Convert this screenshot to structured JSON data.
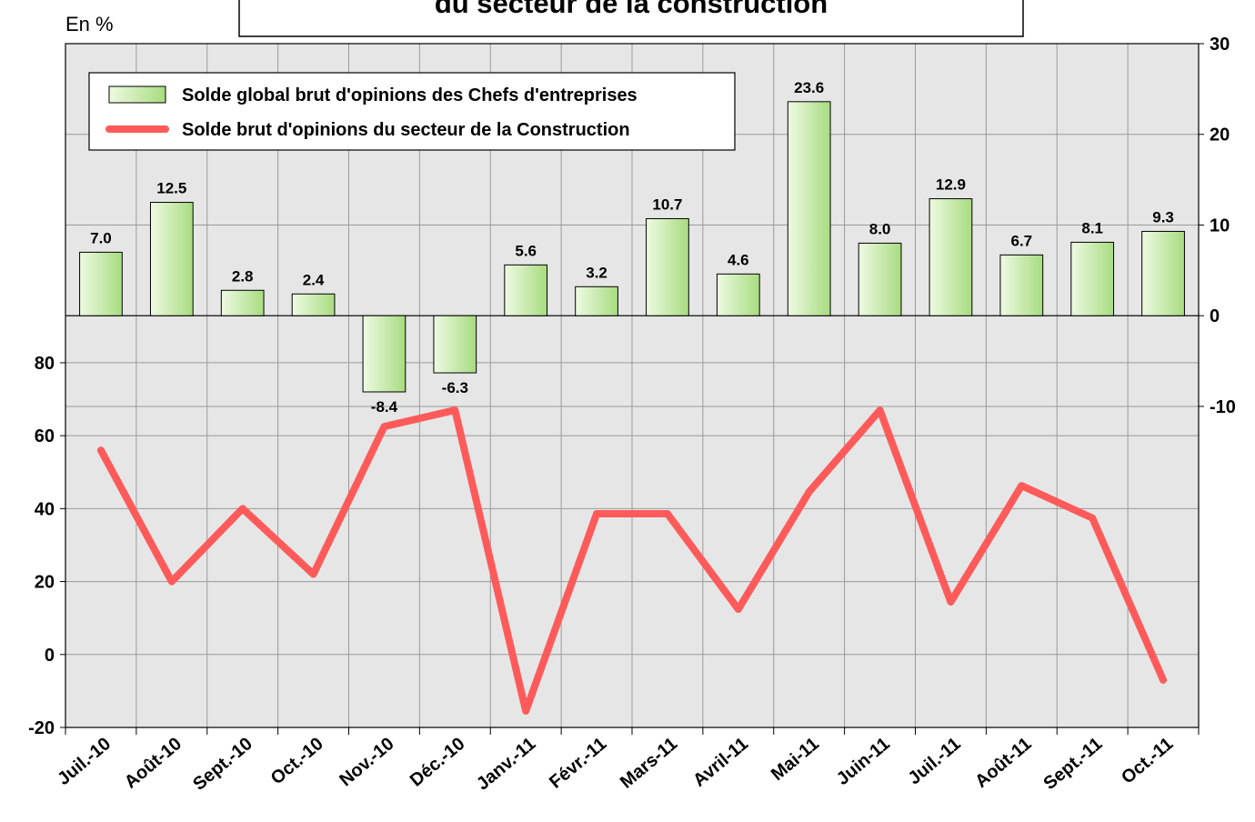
{
  "chart_data": {
    "type": "bar",
    "title": "du secteur de la construction",
    "y_label": "En %",
    "categories": [
      "Juil.-10",
      "Août-10",
      "Sept.-10",
      "Oct.-10",
      "Nov.-10",
      "Déc.-10",
      "Janv.-11",
      "Févr.-11",
      "Mars-11",
      "Avril-11",
      "Mai-11",
      "Juin-11",
      "Juil.-11",
      "Août-11",
      "Sept.-11",
      "Oct.-11"
    ],
    "series": [
      {
        "name": "Solde global brut d'opinions des Chefs d'entreprises",
        "type": "bar",
        "axis": "y2",
        "color": "#a8dc80",
        "values": [
          7.0,
          12.5,
          2.8,
          2.4,
          -8.4,
          -6.3,
          5.6,
          3.2,
          10.7,
          4.6,
          23.6,
          8.0,
          12.9,
          6.7,
          8.1,
          9.3
        ],
        "value_labels": [
          "7.0",
          "12.5",
          "2.8",
          "2.4",
          "-8.4",
          "-6.3",
          "5.6",
          "3.2",
          "10.7",
          "4.6",
          "23.6",
          "8.0",
          "12.9",
          "6.7",
          "8.1",
          "9.3"
        ]
      },
      {
        "name": "Solde brut d'opinions du secteur de la Construction",
        "type": "line",
        "axis": "y",
        "color": "#ff5a5a",
        "values": [
          56,
          20,
          40,
          22,
          62.5,
          67,
          -15.5,
          38.6,
          38.6,
          12.4,
          44.6,
          67,
          14.4,
          46.3,
          37.4,
          -7
        ]
      }
    ],
    "ylim": [
      -20,
      167.5
    ],
    "yticks": [
      -20,
      0,
      20,
      40,
      60,
      80
    ],
    "y2lim": [
      -45.4,
      30
    ],
    "y2ticks": [
      -10,
      0,
      10,
      20,
      30
    ],
    "grid": true,
    "legend": "upper left"
  }
}
